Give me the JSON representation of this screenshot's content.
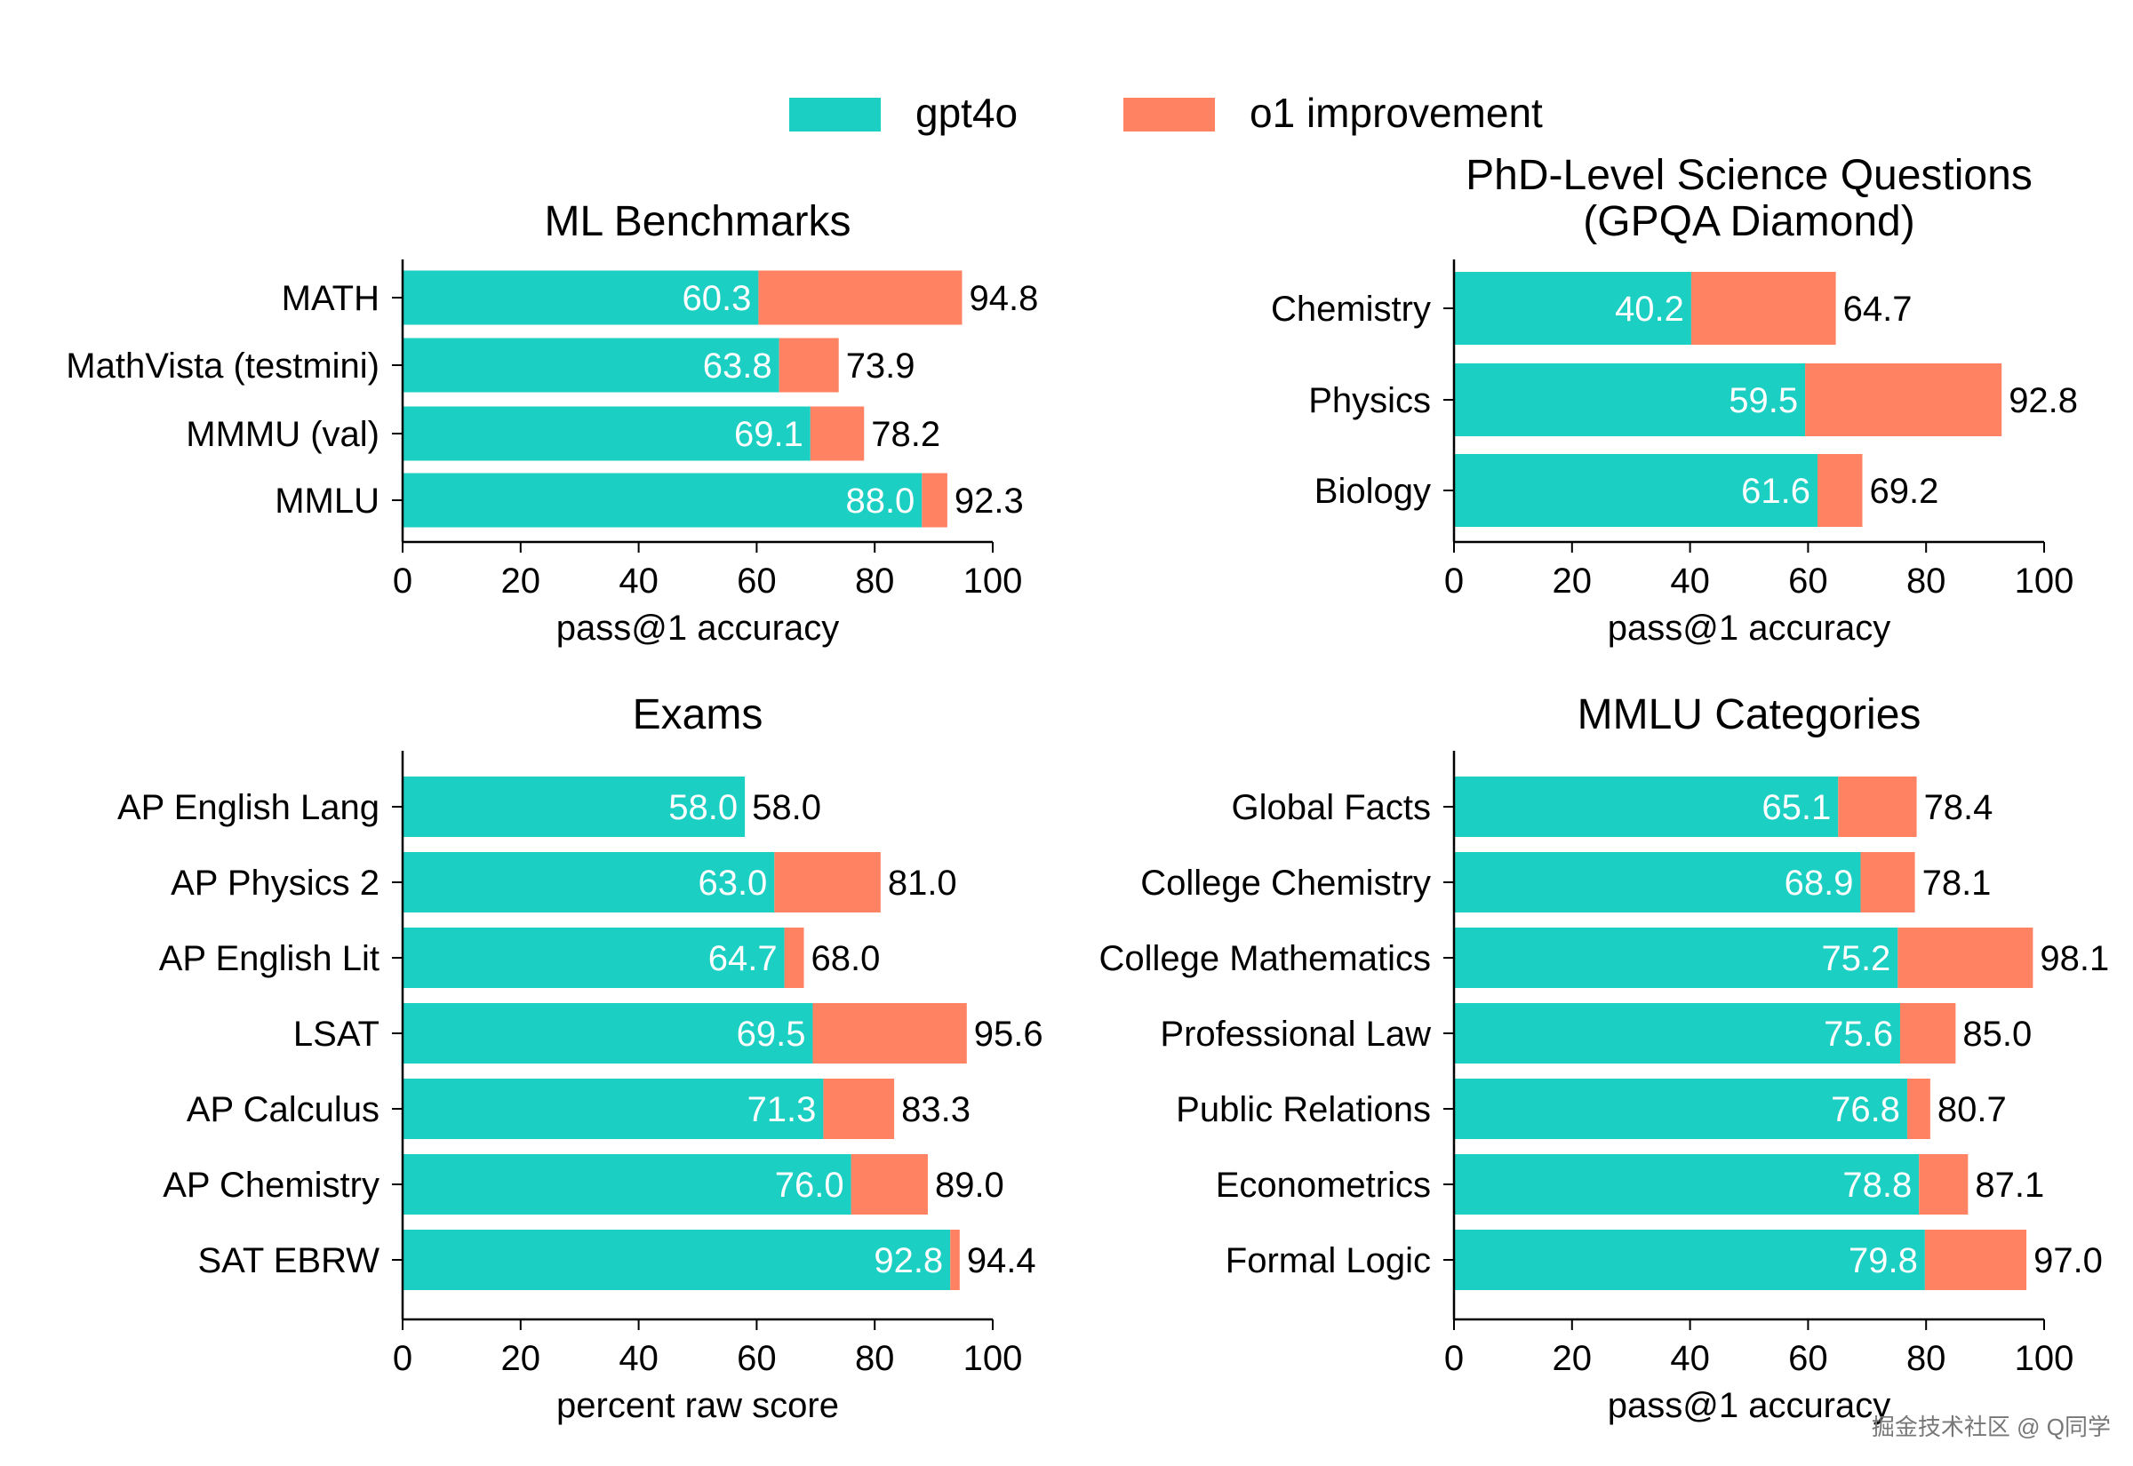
{
  "legend": {
    "placement": "top-center",
    "items": [
      {
        "name": "gpt4o",
        "color": "#1bcfc2"
      },
      {
        "name": "o1 improvement",
        "color": "#ff8263"
      }
    ]
  },
  "watermark": "掘金技术社区 @ Q同学",
  "colors": {
    "gpt4o": "#1bcfc2",
    "o1_improvement": "#ff8263",
    "axis": "#000000"
  },
  "chart_data": [
    {
      "type": "bar",
      "orientation": "horizontal",
      "stacked": true,
      "title": "ML Benchmarks",
      "xlabel": "pass@1 accuracy",
      "xlim": [
        0,
        100
      ],
      "xticks": [
        0,
        20,
        40,
        60,
        80,
        100
      ],
      "categories": [
        "MATH",
        "MathVista (testmini)",
        "MMMU (val)",
        "MMLU"
      ],
      "series": [
        {
          "name": "gpt4o",
          "values": [
            60.3,
            63.8,
            69.1,
            88.0
          ]
        },
        {
          "name": "o1 improvement",
          "totals": [
            94.8,
            73.9,
            78.2,
            92.3
          ]
        }
      ]
    },
    {
      "type": "bar",
      "orientation": "horizontal",
      "stacked": true,
      "title": "PhD-Level Science Questions",
      "subtitle": "(GPQA Diamond)",
      "xlabel": "pass@1 accuracy",
      "xlim": [
        0,
        100
      ],
      "xticks": [
        0,
        20,
        40,
        60,
        80,
        100
      ],
      "categories": [
        "Chemistry",
        "Physics",
        "Biology"
      ],
      "series": [
        {
          "name": "gpt4o",
          "values": [
            40.2,
            59.5,
            61.6
          ]
        },
        {
          "name": "o1 improvement",
          "totals": [
            64.7,
            92.8,
            69.2
          ]
        }
      ]
    },
    {
      "type": "bar",
      "orientation": "horizontal",
      "stacked": true,
      "title": "Exams",
      "xlabel": "percent raw score",
      "xlim": [
        0,
        100
      ],
      "xticks": [
        0,
        20,
        40,
        60,
        80,
        100
      ],
      "categories": [
        "AP English Lang",
        "AP Physics 2",
        "AP English Lit",
        "LSAT",
        "AP Calculus",
        "AP Chemistry",
        "SAT EBRW"
      ],
      "series": [
        {
          "name": "gpt4o",
          "values": [
            58.0,
            63.0,
            64.7,
            69.5,
            71.3,
            76.0,
            92.8
          ]
        },
        {
          "name": "o1 improvement",
          "totals": [
            58.0,
            81.0,
            68.0,
            95.6,
            83.3,
            89.0,
            94.4
          ]
        }
      ]
    },
    {
      "type": "bar",
      "orientation": "horizontal",
      "stacked": true,
      "title": "MMLU Categories",
      "xlabel": "pass@1 accuracy",
      "xlim": [
        0,
        100
      ],
      "xticks": [
        0,
        20,
        40,
        60,
        80,
        100
      ],
      "categories": [
        "Global Facts",
        "College Chemistry",
        "College Mathematics",
        "Professional Law",
        "Public Relations",
        "Econometrics",
        "Formal Logic"
      ],
      "series": [
        {
          "name": "gpt4o",
          "values": [
            65.1,
            68.9,
            75.2,
            75.6,
            76.8,
            78.8,
            79.8
          ]
        },
        {
          "name": "o1 improvement",
          "totals": [
            78.4,
            78.1,
            98.1,
            85.0,
            80.7,
            87.1,
            97.0
          ]
        }
      ]
    }
  ]
}
